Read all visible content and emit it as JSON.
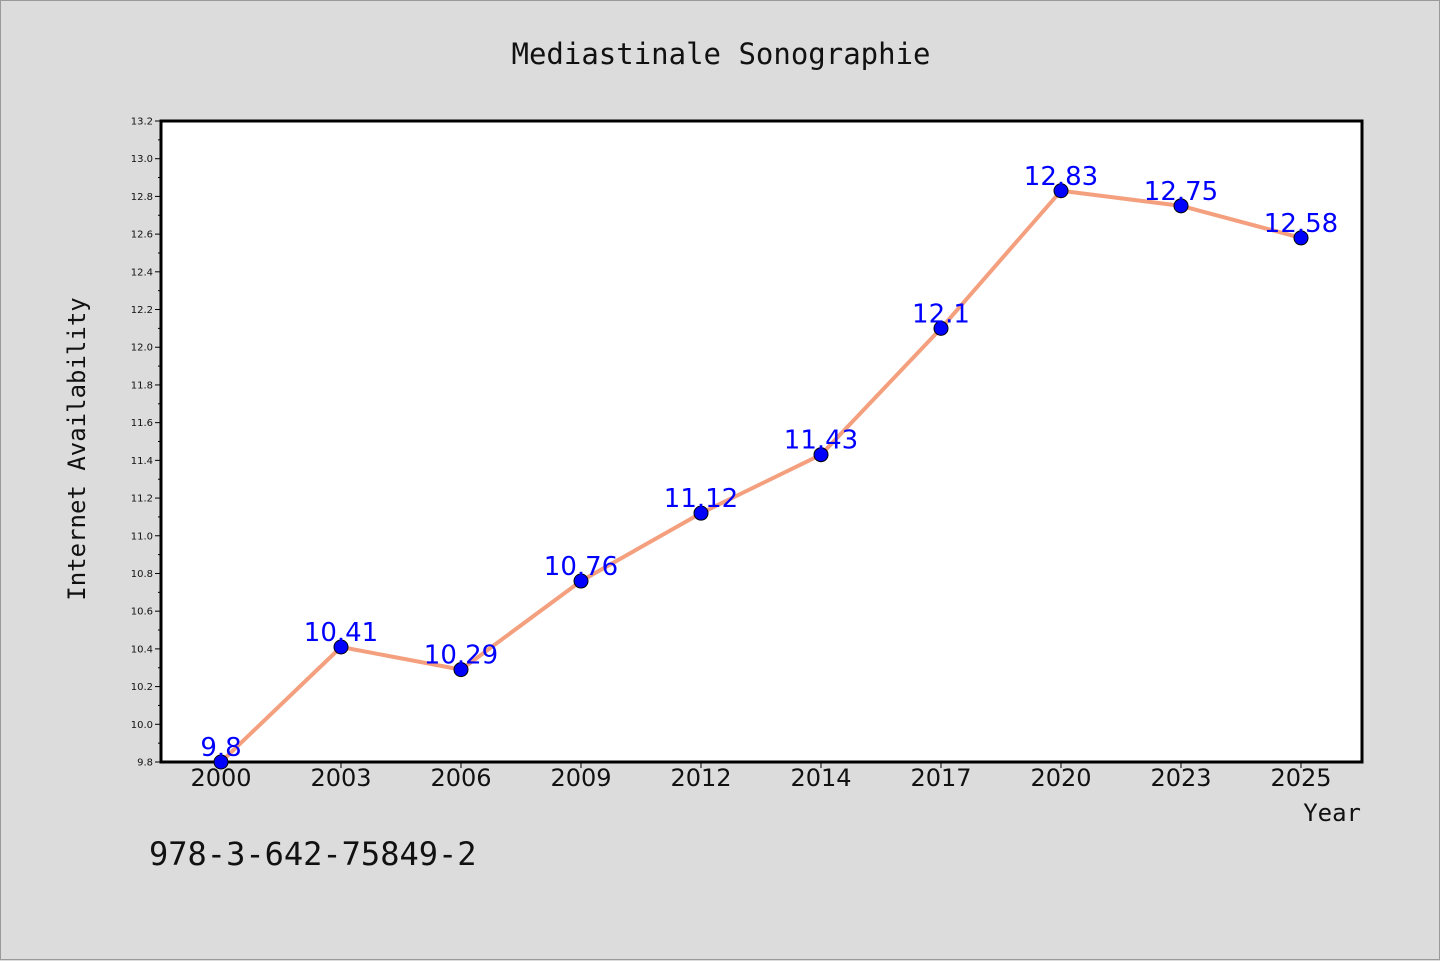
{
  "footer": {
    "code": "978-3-642-75849-2"
  },
  "colors": {
    "line": "#f4a07e",
    "marker": "#0000ff",
    "label": "#0000ff",
    "plot_bg": "#ffffff",
    "page_bg": "#dcdcdc"
  },
  "chart_data": {
    "type": "line",
    "title": "Mediastinale Sonographie",
    "xlabel": "Year",
    "ylabel": "Internet Availability",
    "categories": [
      "2000",
      "2003",
      "2006",
      "2009",
      "2012",
      "2014",
      "2017",
      "2020",
      "2023",
      "2025"
    ],
    "series": [
      {
        "values": [
          9.8,
          10.41,
          10.29,
          10.76,
          11.12,
          11.43,
          12.1,
          12.83,
          12.75,
          12.58
        ]
      }
    ],
    "data_labels": [
      "9.8",
      "10.41",
      "10.29",
      "10.76",
      "11.12",
      "11.43",
      "12.1",
      "12.83",
      "12.75",
      "12.58"
    ],
    "ylim": [
      9.8,
      13.2
    ],
    "yticks": [
      "9.8",
      "10.0",
      "10.2",
      "10.4",
      "10.6",
      "10.8",
      "11.0",
      "11.2",
      "11.4",
      "11.6",
      "11.8",
      "12.0",
      "12.2",
      "12.4",
      "12.6",
      "12.8",
      "13.0",
      "13.2"
    ],
    "grid": false,
    "legend": "none"
  }
}
